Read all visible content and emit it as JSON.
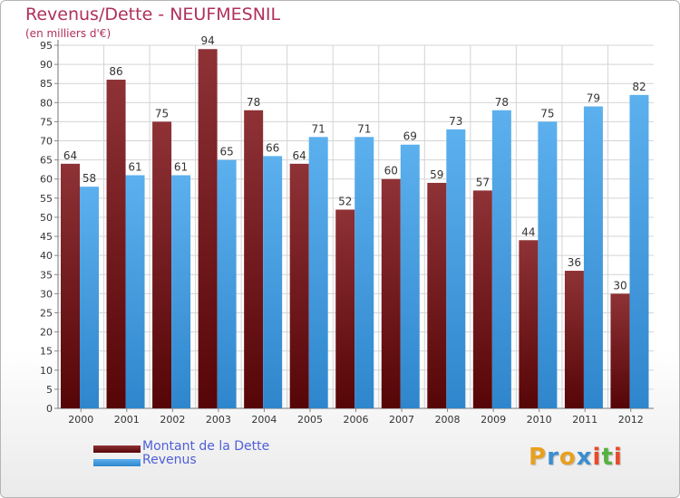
{
  "header": {
    "title": "Revenus/Dette - NEUFMESNIL",
    "subtitle": "(en milliers d'€)"
  },
  "legend": {
    "items": [
      {
        "label": "Montant de la Dette",
        "color": "#7a1f24"
      },
      {
        "label": "Revenus",
        "color": "#4fa6e6"
      }
    ]
  },
  "logo": {
    "text": "Proxiti",
    "letters": [
      {
        "ch": "P",
        "color": "#e8a020"
      },
      {
        "ch": "r",
        "color": "#3a8ed0"
      },
      {
        "ch": "o",
        "color": "#e8a020"
      },
      {
        "ch": "x",
        "color": "#3a8ed0"
      },
      {
        "ch": "i",
        "color": "#e84a2a"
      },
      {
        "ch": "t",
        "color": "#58b040"
      },
      {
        "ch": "i",
        "color": "#e84a2a"
      }
    ]
  },
  "chart_data": {
    "type": "bar",
    "title": "Revenus/Dette - NEUFMESNIL",
    "subtitle": "(en milliers d'€)",
    "categories": [
      "2000",
      "2001",
      "2002",
      "2003",
      "2004",
      "2005",
      "2006",
      "2007",
      "2008",
      "2009",
      "2010",
      "2011",
      "2012"
    ],
    "series": [
      {
        "name": "Montant de la Dette",
        "color": "#7a1f24",
        "values": [
          64,
          86,
          75,
          94,
          78,
          64,
          52,
          60,
          59,
          57,
          44,
          36,
          30
        ]
      },
      {
        "name": "Revenus",
        "color": "#4fa6e6",
        "values": [
          58,
          61,
          61,
          65,
          66,
          71,
          71,
          69,
          73,
          78,
          75,
          79,
          82
        ]
      }
    ],
    "ylim": [
      0,
      95
    ],
    "ytick_step": 5,
    "grid": true,
    "legend_position": "bottom-left",
    "data_labels": true
  }
}
